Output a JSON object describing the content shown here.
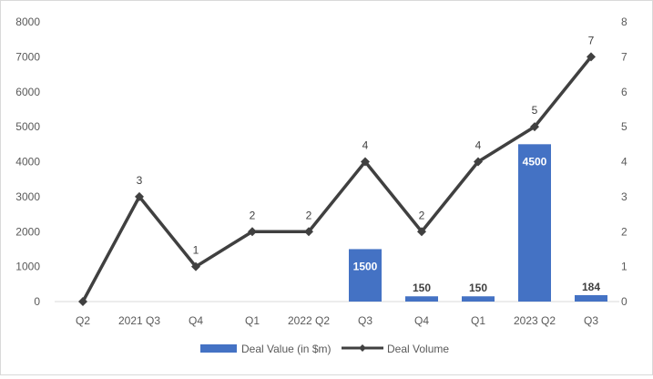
{
  "chart_data": {
    "type": "bar",
    "categories": [
      "Q2",
      "2021 Q3",
      "Q4",
      "Q1",
      "2022 Q2",
      "Q3",
      "Q4",
      "Q1",
      "2023 Q2",
      "Q3"
    ],
    "series": [
      {
        "name": "Deal Value (in $m)",
        "type": "bar",
        "axis": "left",
        "color": "#4472C4",
        "values": [
          0,
          0,
          0,
          0,
          0,
          1500,
          150,
          150,
          4500,
          184
        ],
        "labels": [
          "",
          "",
          "",
          "",
          "",
          "1500",
          "150",
          "150",
          "4500",
          "184"
        ]
      },
      {
        "name": "Deal Volume",
        "type": "line",
        "axis": "right",
        "color": "#404040",
        "marker": "diamond",
        "values": [
          0,
          3,
          1,
          2,
          2,
          4,
          2,
          4,
          5,
          7
        ],
        "labels": [
          "",
          "3",
          "1",
          "2",
          "2",
          "4",
          "2",
          "4",
          "5",
          "7"
        ]
      }
    ],
    "y_left": {
      "ticks": [
        "0",
        "1000",
        "2000",
        "3000",
        "4000",
        "5000",
        "6000",
        "7000",
        "8000"
      ],
      "ylim": [
        0,
        8000
      ]
    },
    "y_right": {
      "ticks": [
        "0",
        "1",
        "2",
        "3",
        "4",
        "5",
        "6",
        "7",
        "8"
      ],
      "ylim": [
        0,
        8
      ]
    },
    "grid": false,
    "legend_position": "bottom"
  }
}
